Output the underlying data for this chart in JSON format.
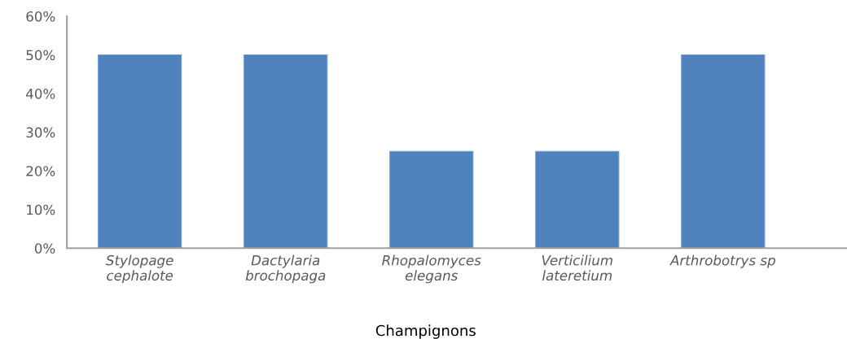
{
  "chart_data": {
    "type": "bar",
    "xlabel": "Champignons",
    "categories": [
      "Stylopage\ncephalote",
      "Dactylaria\nbrochopaga",
      "Rhopalomyces\nelegans",
      "Verticilium\nlateretium",
      "Arthrobotrys sp"
    ],
    "values": [
      50,
      50,
      25,
      25,
      50
    ],
    "color": "#4f81bd",
    "ylim": [
      0,
      60
    ],
    "yticks": [
      {
        "value": 0,
        "label": "0%"
      },
      {
        "value": 10,
        "label": "10%"
      },
      {
        "value": 20,
        "label": "20%"
      },
      {
        "value": 30,
        "label": "30%"
      },
      {
        "value": 40,
        "label": "40%"
      },
      {
        "value": 50,
        "label": "50%"
      },
      {
        "value": 60,
        "label": "60%"
      }
    ],
    "grid": false
  }
}
